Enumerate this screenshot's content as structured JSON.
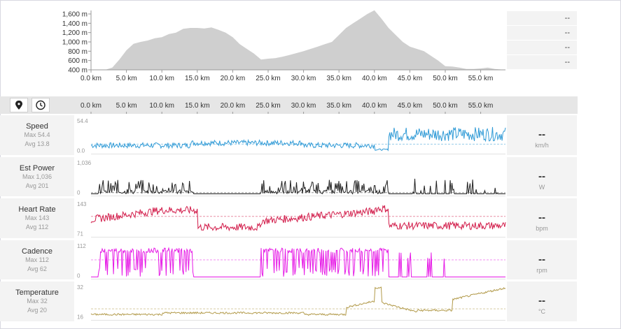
{
  "elevation": {
    "y_ticks": [
      "1,600 m",
      "1,400 m",
      "1,200 m",
      "1,000 m",
      "800 m",
      "600 m",
      "400 m"
    ],
    "x_ticks": [
      "0.0 km",
      "5.0 km",
      "10.0 km",
      "15.0 km",
      "20.0 km",
      "25.0 km",
      "30.0 km",
      "35.0 km",
      "40.0 km",
      "45.0 km",
      "50.0 km",
      "55.0 km"
    ],
    "side_values": [
      "--",
      "--",
      "--",
      "--"
    ],
    "color": "#cfcfcf"
  },
  "toolbar": {
    "pin_icon": "map-pin-icon",
    "clock_icon": "clock-icon"
  },
  "chart_data": {
    "type": "line",
    "x_unit": "km",
    "x_range": [
      0,
      58.5
    ],
    "elevation_profile": {
      "x": [
        0,
        2,
        3,
        4,
        5,
        6,
        7,
        8,
        9,
        10,
        11,
        12,
        13,
        14,
        15,
        16,
        17,
        18,
        19,
        20,
        21,
        22,
        23,
        24,
        25,
        26,
        27,
        28,
        29,
        30,
        31,
        32,
        33,
        34,
        35,
        36,
        37,
        38,
        39,
        40,
        41,
        42,
        43,
        44,
        45,
        46,
        47,
        48,
        49,
        50,
        51,
        52,
        53,
        54,
        55,
        56,
        57,
        58.5
      ],
      "y": [
        400,
        400,
        450,
        620,
        820,
        960,
        1000,
        1030,
        1080,
        1100,
        1170,
        1200,
        1280,
        1300,
        1300,
        1290,
        1310,
        1260,
        1200,
        1100,
        950,
        850,
        750,
        620,
        640,
        650,
        680,
        720,
        760,
        800,
        850,
        900,
        950,
        1000,
        1150,
        1300,
        1400,
        1500,
        1600,
        1680,
        1500,
        1300,
        1150,
        1000,
        900,
        850,
        800,
        700,
        600,
        480,
        470,
        450,
        420,
        420,
        430,
        450,
        420,
        400
      ]
    },
    "series": [
      {
        "name": "Speed",
        "max": "Max 54.4",
        "avg": "Avg 13.8",
        "value": "--",
        "unit": "km/h",
        "y_top": "54.4",
        "y_bottom": "0.0",
        "color": "#2f9ad6"
      },
      {
        "name": "Est Power",
        "max": "Max 1,036",
        "avg": "Avg 201",
        "value": "--",
        "unit": "W",
        "y_top": "1,036",
        "y_bottom": "0",
        "color": "#222222"
      },
      {
        "name": "Heart Rate",
        "max": "Max 143",
        "avg": "Avg 112",
        "value": "--",
        "unit": "bpm",
        "y_top": "143",
        "y_bottom": "71",
        "color": "#d21c4a"
      },
      {
        "name": "Cadence",
        "max": "Max 112",
        "avg": "Avg 62",
        "value": "--",
        "unit": "rpm",
        "y_top": "112",
        "y_bottom": "0",
        "color": "#e619e6"
      },
      {
        "name": "Temperature",
        "max": "Max 32",
        "avg": "Avg 20",
        "value": "--",
        "unit": "°C",
        "y_top": "32",
        "y_bottom": "16",
        "color": "#b29a4a"
      }
    ]
  }
}
